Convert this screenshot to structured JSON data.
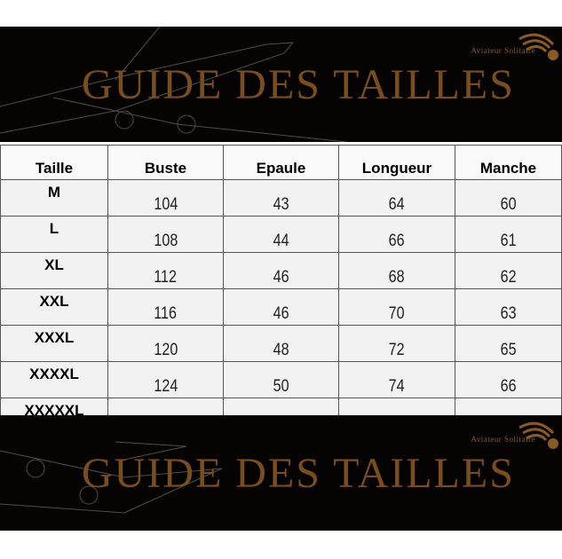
{
  "banner_top": {
    "title": "GUIDE DES TAILLES",
    "brand": "Aviateur Solitaire"
  },
  "banner_bottom": {
    "title": "GUIDE DES TAILLES",
    "brand": "Aviateur Solitaire"
  },
  "table": {
    "headers": [
      "Taille",
      "Buste",
      "Epaule",
      "Longueur",
      "Manche"
    ],
    "rows": [
      [
        "M",
        "104",
        "43",
        "64",
        "60"
      ],
      [
        "L",
        "108",
        "44",
        "66",
        "61"
      ],
      [
        "XL",
        "112",
        "46",
        "68",
        "62"
      ],
      [
        "XXL",
        "116",
        "46",
        "70",
        "63"
      ],
      [
        "XXXL",
        "120",
        "48",
        "72",
        "65"
      ],
      [
        "XXXXL",
        "124",
        "50",
        "74",
        "66"
      ],
      [
        "XXXXXL",
        "-",
        "-",
        "-",
        "-"
      ]
    ]
  },
  "colors": {
    "banner": "#050403",
    "title": "#7a4e1c"
  }
}
